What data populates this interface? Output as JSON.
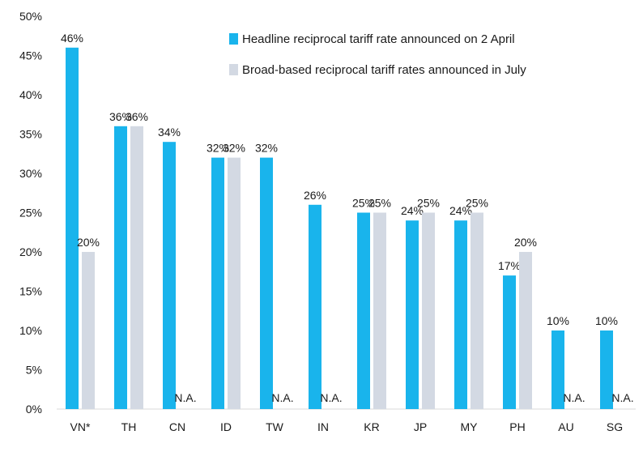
{
  "chart_data": {
    "type": "bar",
    "title": "",
    "xlabel": "",
    "ylabel": "",
    "ylim": [
      0,
      50
    ],
    "y_ticks": [
      "0%",
      "5%",
      "10%",
      "15%",
      "20%",
      "25%",
      "30%",
      "35%",
      "40%",
      "45%",
      "50%"
    ],
    "y_tick_values": [
      0,
      5,
      10,
      15,
      20,
      25,
      30,
      35,
      40,
      45,
      50
    ],
    "grid": false,
    "legend_position": "top-right",
    "categories": [
      "VN*",
      "TH",
      "CN",
      "ID",
      "TW",
      "IN",
      "KR",
      "JP",
      "MY",
      "PH",
      "AU",
      "SG"
    ],
    "series": [
      {
        "name": "Headline reciprocal tariff rate announced on 2 April",
        "color": "#19b4ec",
        "values": [
          46,
          36,
          34,
          32,
          32,
          26,
          25,
          24,
          24,
          17,
          10,
          10
        ],
        "labels": [
          "46%",
          "36%",
          "34%",
          "32%",
          "32%",
          "26%",
          "25%",
          "24%",
          "24%",
          "17%",
          "10%",
          "10%"
        ]
      },
      {
        "name": "Broad-based reciprocal tariff rates announced in July",
        "color": "#d3d9e3",
        "values": [
          20,
          36,
          null,
          32,
          null,
          null,
          25,
          25,
          25,
          20,
          null,
          null
        ],
        "labels": [
          "20%",
          "36%",
          "N.A.",
          "32%",
          "N.A.",
          "N.A.",
          "25%",
          "25%",
          "25%",
          "20%",
          "N.A.",
          "N.A."
        ]
      }
    ]
  }
}
